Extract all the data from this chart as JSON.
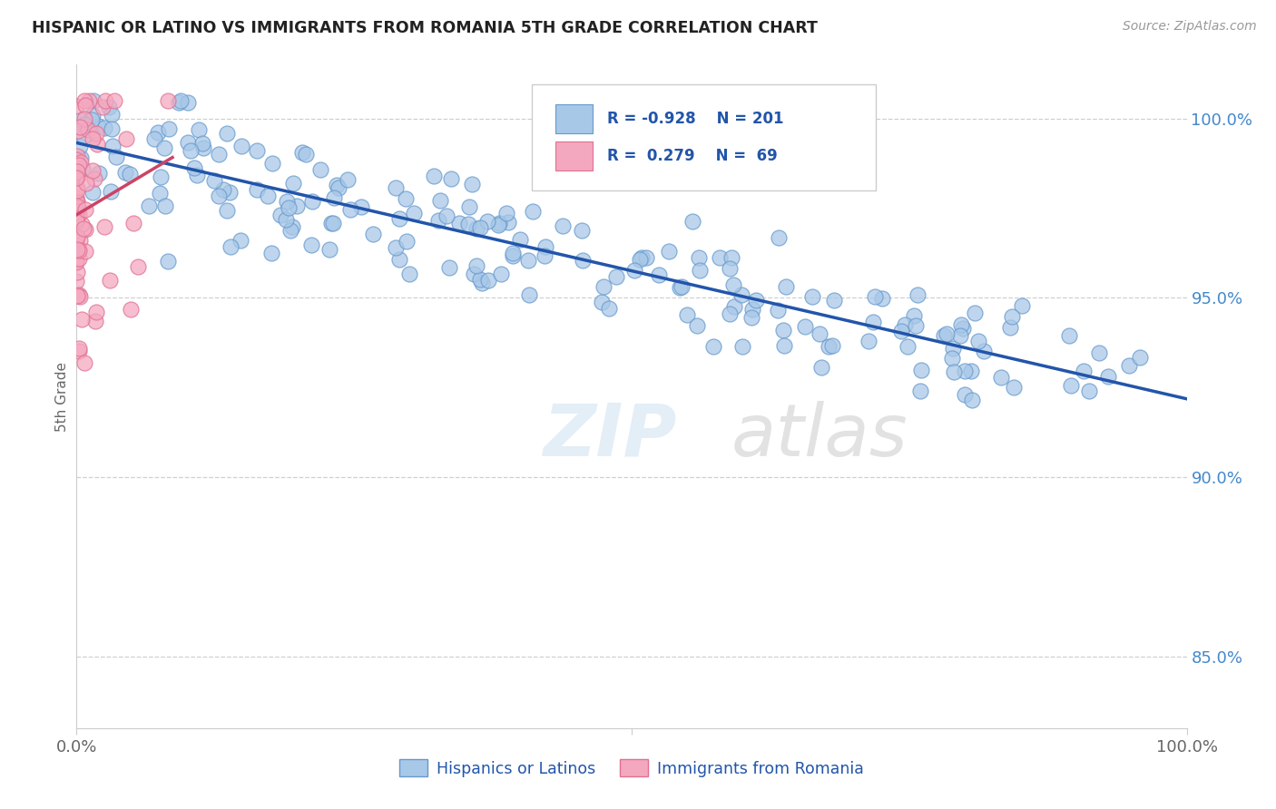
{
  "title": "HISPANIC OR LATINO VS IMMIGRANTS FROM ROMANIA 5TH GRADE CORRELATION CHART",
  "source_text": "Source: ZipAtlas.com",
  "ylabel": "5th Grade",
  "watermark_zip": "ZIP",
  "watermark_atlas": "atlas",
  "x_min": 0.0,
  "x_max": 1.0,
  "y_min": 0.83,
  "y_max": 1.015,
  "y_tick_labels_right": [
    "85.0%",
    "90.0%",
    "95.0%",
    "100.0%"
  ],
  "y_tick_vals_right": [
    0.85,
    0.9,
    0.95,
    1.0
  ],
  "blue_color": "#a8c8e8",
  "blue_edge": "#6699cc",
  "pink_color": "#f4a8c0",
  "pink_edge": "#e07090",
  "blue_line_color": "#2255aa",
  "pink_line_color": "#cc4466",
  "blue_R": -0.928,
  "blue_N": 201,
  "pink_R": 0.279,
  "pink_N": 69,
  "legend_label_blue": "Hispanics or Latinos",
  "legend_label_pink": "Immigrants from Romania",
  "grid_color": "#bbbbbb",
  "background_color": "#ffffff",
  "title_color": "#222222",
  "right_label_color": "#4488cc",
  "legend_text_color": "#2255aa",
  "seed": 42
}
